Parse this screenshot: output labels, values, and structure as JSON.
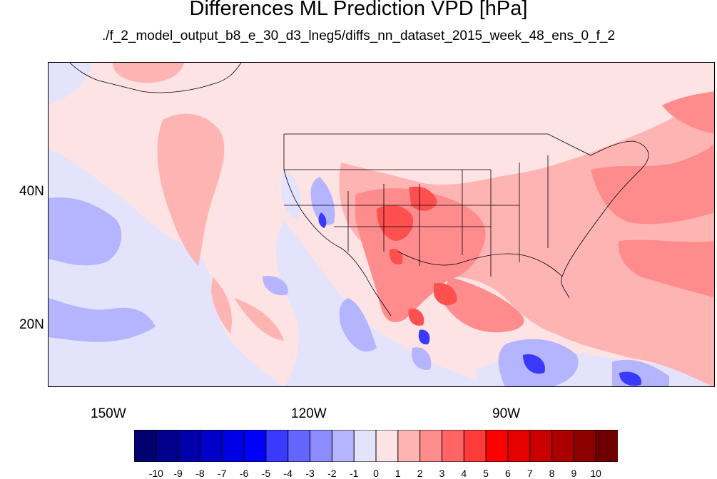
{
  "title": "Differences ML Prediction VPD [hPa]",
  "subtitle": "./f_2_model_output_b8_e_30_d3_lneg5/diffs_nn_dataset_2015_week_48_ens_0_f_2",
  "lat_labels": [
    "40N",
    "20N"
  ],
  "lon_labels": [
    "150W",
    "120W",
    "90W"
  ],
  "colorbar": {
    "labels": [
      "-10",
      "-9",
      "-8",
      "-7",
      "-6",
      "-5",
      "-4",
      "-3",
      "-2",
      "-1",
      "0",
      "1",
      "2",
      "3",
      "4",
      "5",
      "6",
      "7",
      "8",
      "9",
      "10"
    ],
    "colors": [
      "#00006e",
      "#00008c",
      "#0000aa",
      "#0000c8",
      "#0000e6",
      "#0000ff",
      "#3a3aff",
      "#6464ff",
      "#8c8cff",
      "#b4b4ff",
      "#e3e3fb",
      "#fde3e3",
      "#ffb4b4",
      "#ff8c8c",
      "#ff6464",
      "#ff3a3a",
      "#ff0000",
      "#e60000",
      "#c80000",
      "#aa0000",
      "#8c0000",
      "#6e0000"
    ]
  },
  "map": {
    "region": "Contiguous United States, northern Mexico and eastern Pacific",
    "lon_range": [
      -160,
      -62
    ],
    "lat_range": [
      11,
      60
    ],
    "background_fill": "#fde3e3"
  }
}
